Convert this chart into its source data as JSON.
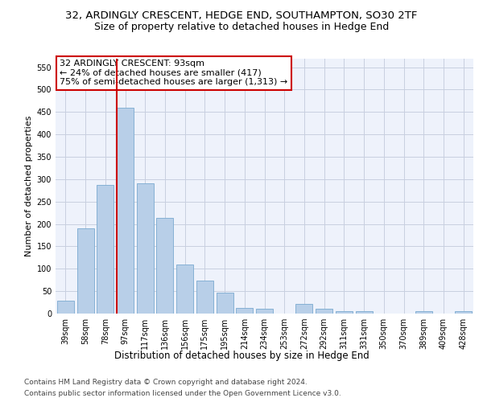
{
  "title1": "32, ARDINGLY CRESCENT, HEDGE END, SOUTHAMPTON, SO30 2TF",
  "title2": "Size of property relative to detached houses in Hedge End",
  "xlabel": "Distribution of detached houses by size in Hedge End",
  "ylabel": "Number of detached properties",
  "categories": [
    "39sqm",
    "58sqm",
    "78sqm",
    "97sqm",
    "117sqm",
    "136sqm",
    "156sqm",
    "175sqm",
    "195sqm",
    "214sqm",
    "234sqm",
    "253sqm",
    "272sqm",
    "292sqm",
    "311sqm",
    "331sqm",
    "350sqm",
    "370sqm",
    "389sqm",
    "409sqm",
    "428sqm"
  ],
  "values": [
    28,
    190,
    287,
    459,
    290,
    213,
    109,
    74,
    46,
    13,
    11,
    0,
    21,
    10,
    5,
    5,
    0,
    0,
    6,
    0,
    5
  ],
  "bar_color": "#b8cfe8",
  "bar_edge_color": "#7aaad0",
  "vline_x_index": 3,
  "vline_color": "#cc0000",
  "annotation_line1": "32 ARDINGLY CRESCENT: 93sqm",
  "annotation_line2": "← 24% of detached houses are smaller (417)",
  "annotation_line3": "75% of semi-detached houses are larger (1,313) →",
  "ylim": [
    0,
    570
  ],
  "yticks": [
    0,
    50,
    100,
    150,
    200,
    250,
    300,
    350,
    400,
    450,
    500,
    550
  ],
  "footer1": "Contains HM Land Registry data © Crown copyright and database right 2024.",
  "footer2": "Contains public sector information licensed under the Open Government Licence v3.0.",
  "bg_color": "#eef2fb",
  "grid_color": "#c8cfe0",
  "title1_fontsize": 9.5,
  "title2_fontsize": 9,
  "xlabel_fontsize": 8.5,
  "ylabel_fontsize": 8,
  "tick_fontsize": 7,
  "annotation_fontsize": 8,
  "footer_fontsize": 6.5
}
